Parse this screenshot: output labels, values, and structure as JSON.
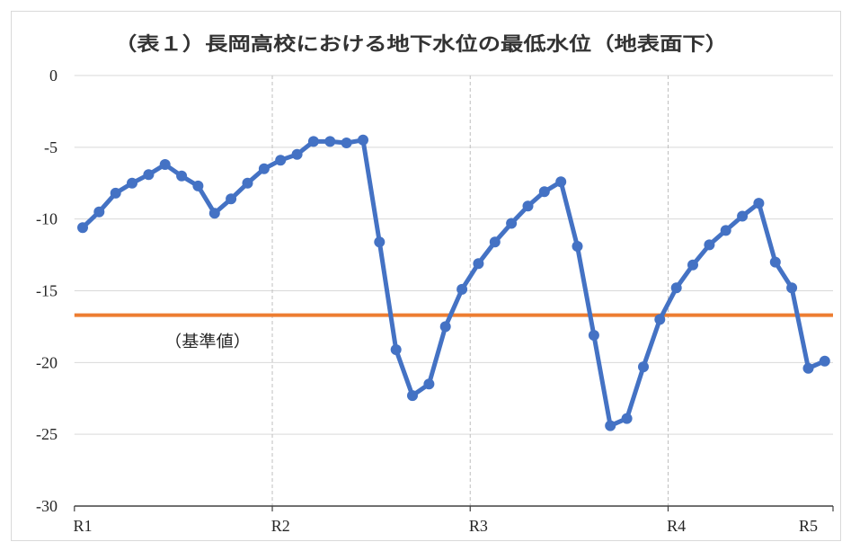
{
  "chart_data": {
    "type": "line",
    "title": "（表１）長岡高校における地下水位の最低水位（地表面下）",
    "categories": [
      "R1",
      "",
      "",
      "",
      "",
      "",
      "",
      "",
      "",
      "",
      "",
      "",
      "R2",
      "",
      "",
      "",
      "",
      "",
      "",
      "",
      "",
      "",
      "",
      "",
      "R3",
      "",
      "",
      "",
      "",
      "",
      "",
      "",
      "",
      "",
      "",
      "",
      "R4",
      "",
      "",
      "",
      "",
      "",
      "",
      "",
      "R5",
      ""
    ],
    "ylim": [
      -30,
      0
    ],
    "yticks": [
      0,
      -5,
      -10,
      -15,
      -20,
      -25,
      -30
    ],
    "grid": {
      "horizontal": true,
      "vertical": true
    },
    "series": [
      {
        "color": "#4472C4",
        "values": [
          -10.6,
          -9.5,
          -8.2,
          -7.5,
          -6.9,
          -6.2,
          -7.0,
          -7.7,
          -9.6,
          -8.6,
          -7.5,
          -6.5,
          -5.9,
          -5.5,
          -4.6,
          -4.6,
          -4.7,
          -4.5,
          -11.6,
          -19.1,
          -22.3,
          -21.5,
          -17.5,
          -14.9,
          -13.1,
          -11.6,
          -10.3,
          -9.1,
          -8.1,
          -7.4,
          -11.9,
          -18.1,
          -24.4,
          -23.9,
          -20.3,
          -17.0,
          -14.8,
          -13.2,
          -11.8,
          -10.8,
          -9.8,
          -8.9,
          -13.0,
          -14.8,
          -20.4,
          -19.9
        ]
      }
    ],
    "reference_line": {
      "label": "（基準値）",
      "value": -16.7,
      "color": "#ED7D31"
    }
  }
}
